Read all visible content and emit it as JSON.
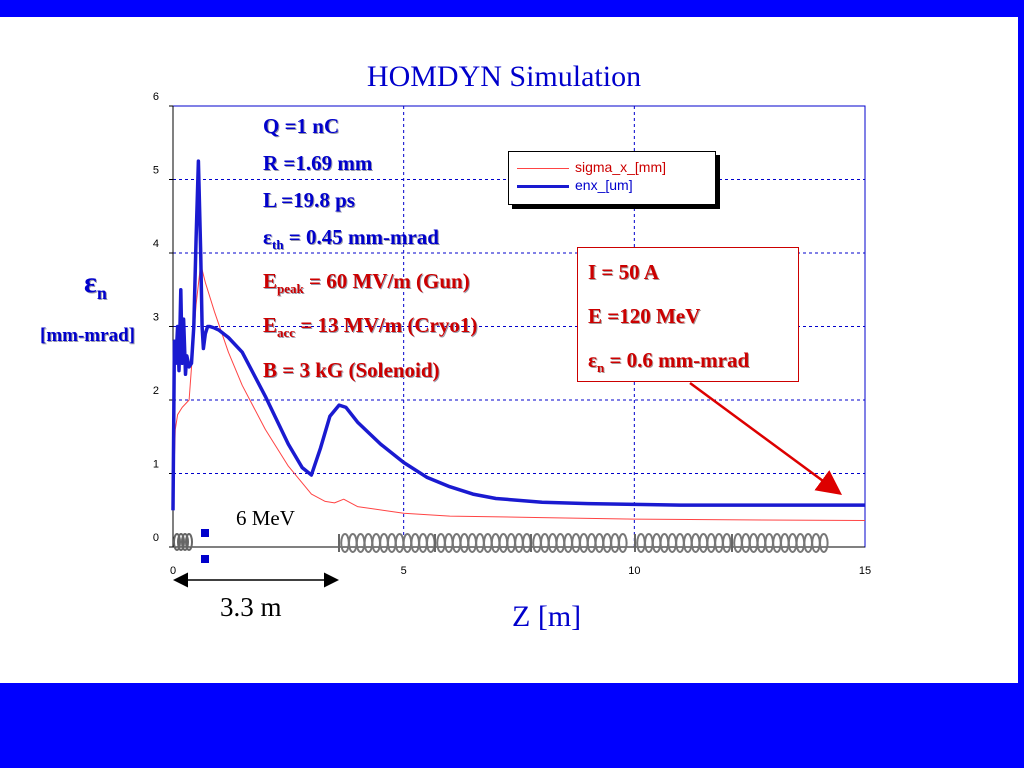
{
  "slide": {
    "title": "HOMDYN Simulation",
    "y_axis_label": "ε",
    "y_axis_label_sub": "n",
    "y_axis_unit": "[mm-mrad]",
    "x_axis_label": "Z [m]",
    "energy_label": "6 MeV",
    "distance_label": "3.3 m",
    "colors": {
      "background": "#0000ff",
      "panel": "#ffffff",
      "text_blue": "#0000cc",
      "text_red": "#cc0000"
    }
  },
  "parameters": [
    {
      "main": "Q  =1 nC",
      "sub": "",
      "rest": "",
      "color": "blue"
    },
    {
      "main": "R  =1.69 mm",
      "sub": "",
      "rest": "",
      "color": "blue"
    },
    {
      "main": "L  =19.8 ps",
      "sub": "",
      "rest": "",
      "color": "blue"
    },
    {
      "main": "ε",
      "sub": "th",
      "rest": " = 0.45 mm-mrad",
      "color": "blue"
    },
    {
      "main": "E",
      "sub": "peak",
      "rest": " = 60 MV/m (Gun)",
      "color": "red"
    },
    {
      "main": "E",
      "sub": "acc",
      "rest": "  = 13 MV/m (Cryo1)",
      "color": "red"
    },
    {
      "main": "B",
      "sub": "",
      "rest": "     = 3 kG (Solenoid)",
      "color": "red"
    }
  ],
  "result_box": {
    "line1": "I   = 50 A",
    "line2": "E  =120 MeV",
    "line3_main": "ε",
    "line3_sub": "n",
    "line3_rest": " = 0.6 mm-mrad"
  },
  "chart_data": {
    "type": "line",
    "xlim": [
      0,
      15
    ],
    "ylim": [
      0,
      6
    ],
    "x_ticks": [
      "0",
      "5",
      "10",
      "15"
    ],
    "y_ticks": [
      "0",
      "1",
      "2",
      "3",
      "4",
      "5",
      "6"
    ],
    "grid": true,
    "legend_position": "top-right",
    "series": [
      {
        "name": "sigma_x_[mm]",
        "color": "#ff4444",
        "x": [
          0.0,
          0.05,
          0.1,
          0.2,
          0.35,
          0.5,
          0.6,
          0.7,
          0.9,
          1.2,
          1.5,
          2.0,
          2.5,
          3.0,
          3.3,
          3.5,
          3.7,
          4.0,
          5.0,
          6.0,
          8.0,
          10.0,
          12.0,
          15.0
        ],
        "values": [
          0.6,
          1.6,
          1.8,
          1.9,
          2.0,
          3.3,
          3.85,
          3.6,
          3.2,
          2.65,
          2.2,
          1.6,
          1.1,
          0.72,
          0.62,
          0.6,
          0.65,
          0.55,
          0.46,
          0.42,
          0.4,
          0.38,
          0.37,
          0.36
        ]
      },
      {
        "name": "enx_[um]",
        "color": "#1a1ad0",
        "x": [
          0.0,
          0.03,
          0.06,
          0.1,
          0.13,
          0.17,
          0.2,
          0.23,
          0.27,
          0.3,
          0.35,
          0.4,
          0.45,
          0.5,
          0.55,
          0.6,
          0.63,
          0.66,
          0.7,
          0.75,
          0.8,
          0.9,
          1.0,
          1.2,
          1.5,
          2.0,
          2.5,
          2.8,
          3.0,
          3.2,
          3.4,
          3.6,
          3.75,
          4.0,
          4.5,
          5.0,
          5.5,
          6.0,
          6.5,
          7.0,
          8.0,
          9.0,
          10.0,
          11.0,
          12.0,
          13.0,
          14.0,
          15.0
        ],
        "values": [
          0.5,
          2.8,
          2.5,
          3.0,
          2.4,
          3.5,
          2.5,
          3.1,
          2.35,
          2.6,
          2.45,
          2.5,
          3.0,
          4.2,
          5.25,
          4.0,
          3.0,
          2.7,
          2.9,
          3.0,
          3.0,
          2.98,
          2.95,
          2.85,
          2.65,
          2.05,
          1.4,
          1.08,
          0.98,
          1.35,
          1.78,
          1.93,
          1.9,
          1.7,
          1.4,
          1.15,
          0.95,
          0.82,
          0.72,
          0.66,
          0.61,
          0.59,
          0.58,
          0.57,
          0.57,
          0.57,
          0.57,
          0.57
        ]
      }
    ]
  }
}
